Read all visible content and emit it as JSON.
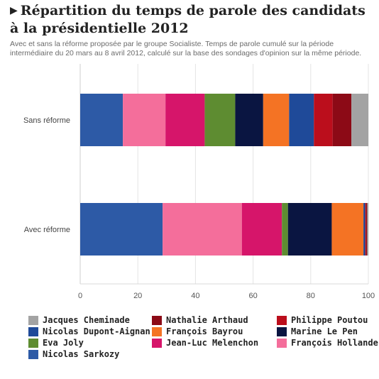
{
  "header": {
    "title": "Répartition du temps de parole des candidats à la présidentielle 2012",
    "subtitle": "Avec et sans la réforme proposée par le groupe Socialiste. Temps de parole cumulé sur la période intermédiaire du 20 mars au 8 avril 2012, calculé sur la base des sondages d'opinion sur la même période."
  },
  "chart_data": {
    "type": "bar",
    "orientation": "horizontal",
    "stacked": true,
    "title": "Répartition du temps de parole des candidats à la présidentielle 2012",
    "xlim": [
      0,
      100
    ],
    "xticks": [
      "0",
      "20",
      "40",
      "60",
      "80",
      "100"
    ],
    "grid": true,
    "categories": [
      "Sans réforme",
      "Avec réforme"
    ],
    "series": [
      {
        "name": "Nicolas Sarkozy",
        "color": "#2d5aa6",
        "values": [
          14.8,
          28.6
        ]
      },
      {
        "name": "François Hollande",
        "color": "#f46e9b",
        "values": [
          14.8,
          27.5
        ]
      },
      {
        "name": "Jean-Luc Melenchon",
        "color": "#d6156a",
        "values": [
          13.6,
          13.9
        ]
      },
      {
        "name": "Eva Joly",
        "color": "#5e8c31",
        "values": [
          10.6,
          2.1
        ]
      },
      {
        "name": "Marine Le Pen",
        "color": "#0a1541",
        "values": [
          9.7,
          15.2
        ]
      },
      {
        "name": "François Bayrou",
        "color": "#f47324",
        "values": [
          9.0,
          11.0
        ]
      },
      {
        "name": "Nicolas Dupont-Aignan",
        "color": "#1f4a99",
        "values": [
          8.6,
          0.6
        ]
      },
      {
        "name": "Philippe Poutou",
        "color": "#bb0e1c",
        "values": [
          6.5,
          0.3
        ]
      },
      {
        "name": "Nathalie Arthaud",
        "color": "#8c0a16",
        "values": [
          6.5,
          0.4
        ]
      },
      {
        "name": "Jacques Cheminade",
        "color": "#a3a3a3",
        "values": [
          5.9,
          0.4
        ]
      }
    ],
    "legend": {
      "placement": "bottom",
      "rows": [
        [
          {
            "name": "Jacques Cheminade",
            "color": "#a3a3a3"
          },
          {
            "name": "Nathalie Arthaud",
            "color": "#8c0a16"
          },
          {
            "name": "Philippe Poutou",
            "color": "#bb0e1c"
          }
        ],
        [
          {
            "name": "Nicolas Dupont-Aignan",
            "color": "#1f4a99"
          },
          {
            "name": "François Bayrou",
            "color": "#f47324"
          },
          {
            "name": "Marine Le Pen",
            "color": "#0a1541"
          }
        ],
        [
          {
            "name": "Eva Joly",
            "color": "#5e8c31"
          },
          {
            "name": "Jean-Luc Melenchon",
            "color": "#d6156a"
          },
          {
            "name": "François Hollande",
            "color": "#f46e9b"
          }
        ],
        [
          {
            "name": "Nicolas Sarkozy",
            "color": "#2d5aa6"
          }
        ]
      ]
    }
  }
}
